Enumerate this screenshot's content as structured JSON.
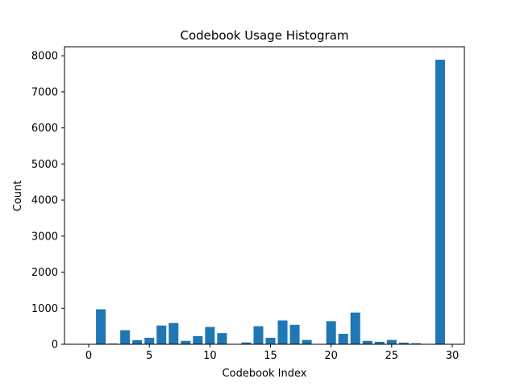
{
  "chart_data": {
    "type": "bar",
    "title": "Codebook Usage Histogram",
    "xlabel": "Codebook Index",
    "ylabel": "Count",
    "xlim": [
      -2,
      31
    ],
    "ylim": [
      0,
      8250
    ],
    "xticks": [
      0,
      5,
      10,
      15,
      20,
      25,
      30
    ],
    "yticks": [
      0,
      1000,
      2000,
      3000,
      4000,
      5000,
      6000,
      7000,
      8000
    ],
    "bar_color": "#1f77b4",
    "grid": false,
    "legend": "none",
    "x": [
      0,
      1,
      2,
      3,
      4,
      5,
      6,
      7,
      8,
      9,
      10,
      11,
      12,
      13,
      14,
      15,
      16,
      17,
      18,
      19,
      20,
      21,
      22,
      23,
      24,
      25,
      26,
      27,
      28,
      29
    ],
    "values": [
      0,
      970,
      20,
      390,
      115,
      180,
      520,
      590,
      95,
      225,
      480,
      310,
      0,
      50,
      500,
      180,
      660,
      540,
      120,
      0,
      640,
      290,
      880,
      95,
      70,
      120,
      45,
      30,
      0,
      7890
    ]
  }
}
